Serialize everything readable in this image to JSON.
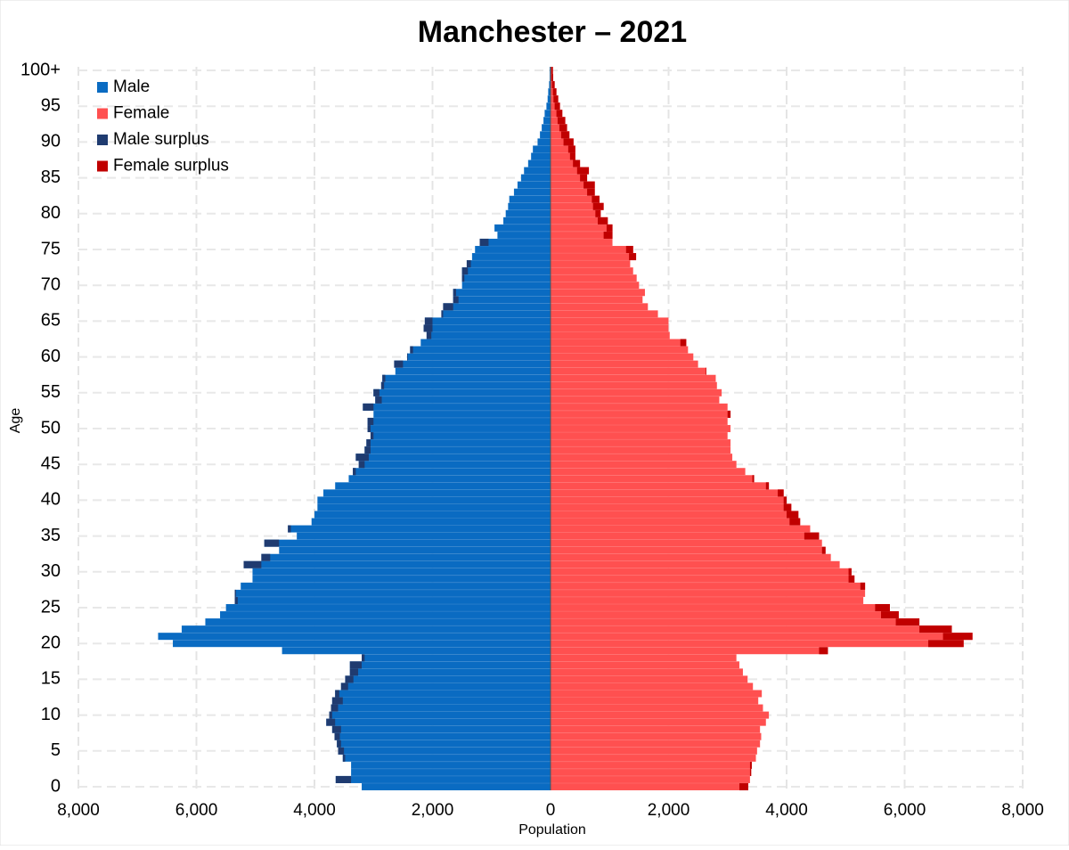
{
  "chart_data": {
    "type": "pyramid",
    "title": "Manchester – 2021",
    "x_label": "Population",
    "y_label": "Age",
    "categories": [
      "0",
      null,
      null,
      null,
      null,
      "5",
      null,
      null,
      null,
      null,
      "10",
      null,
      null,
      null,
      null,
      "15",
      null,
      null,
      null,
      null,
      "20",
      null,
      null,
      null,
      null,
      "25",
      null,
      null,
      null,
      null,
      "30",
      null,
      null,
      null,
      null,
      "35",
      null,
      null,
      null,
      null,
      "40",
      null,
      null,
      null,
      null,
      "45",
      null,
      null,
      null,
      null,
      "50",
      null,
      null,
      null,
      null,
      "55",
      null,
      null,
      null,
      null,
      "60",
      null,
      null,
      null,
      null,
      "65",
      null,
      null,
      null,
      null,
      "70",
      null,
      null,
      null,
      null,
      "75",
      null,
      null,
      null,
      null,
      "80",
      null,
      null,
      null,
      null,
      "85",
      null,
      null,
      null,
      null,
      "90",
      null,
      null,
      null,
      null,
      "95",
      null,
      null,
      null,
      null,
      "100+"
    ],
    "series": [
      {
        "name": "Male",
        "color": "#0a6bc2",
        "side": "left",
        "values": [
          3200,
          3640,
          3380,
          3380,
          3520,
          3600,
          3620,
          3660,
          3700,
          3800,
          3750,
          3720,
          3700,
          3650,
          3550,
          3480,
          3400,
          3400,
          3200,
          4550,
          6400,
          6650,
          6250,
          5850,
          5600,
          5500,
          5350,
          5350,
          5250,
          5050,
          5050,
          5200,
          4900,
          4600,
          4850,
          4300,
          4450,
          4050,
          4000,
          3950,
          3950,
          3850,
          3650,
          3420,
          3350,
          3250,
          3300,
          3150,
          3120,
          3050,
          3100,
          3100,
          3000,
          3180,
          2970,
          3000,
          2870,
          2850,
          2630,
          2650,
          2430,
          2380,
          2200,
          2100,
          2150,
          2130,
          1850,
          1820,
          1650,
          1650,
          1500,
          1500,
          1500,
          1420,
          1330,
          1280,
          1200,
          900,
          950,
          800,
          760,
          720,
          700,
          620,
          560,
          500,
          450,
          380,
          330,
          300,
          220,
          180,
          150,
          120,
          100,
          70,
          50,
          40,
          25,
          15,
          15
        ]
      },
      {
        "name": "Female",
        "color": "#ff5050",
        "side": "right",
        "values": [
          3350,
          3380,
          3400,
          3410,
          3480,
          3500,
          3550,
          3570,
          3550,
          3650,
          3700,
          3600,
          3520,
          3580,
          3430,
          3340,
          3260,
          3200,
          3150,
          4700,
          7000,
          7150,
          6800,
          6250,
          5900,
          5750,
          5300,
          5330,
          5330,
          5150,
          5100,
          4900,
          4750,
          4660,
          4600,
          4550,
          4400,
          4230,
          4200,
          4080,
          4000,
          3950,
          3700,
          3450,
          3300,
          3150,
          3080,
          3050,
          3050,
          3000,
          3050,
          3000,
          3050,
          3000,
          2860,
          2900,
          2820,
          2800,
          2640,
          2500,
          2420,
          2330,
          2300,
          2020,
          2000,
          2000,
          1820,
          1650,
          1560,
          1600,
          1500,
          1460,
          1400,
          1350,
          1450,
          1400,
          1050,
          1050,
          1050,
          970,
          850,
          900,
          830,
          750,
          750,
          620,
          650,
          500,
          420,
          420,
          390,
          320,
          280,
          250,
          200,
          160,
          130,
          100,
          70,
          45,
          40
        ]
      },
      {
        "name": "Male surplus",
        "color": "#1f3b70"
      },
      {
        "name": "Female surplus",
        "color": "#c00000"
      }
    ],
    "xlim": [
      0,
      8000
    ],
    "xticks": [
      0,
      {
        "value": 2000,
        "label": "2,000"
      },
      {
        "value": 4000,
        "label": "4,000"
      },
      {
        "value": 6000,
        "label": "6,000"
      },
      {
        "value": 8000,
        "label": "8,000"
      }
    ],
    "grid": true,
    "legend": "top-left"
  }
}
